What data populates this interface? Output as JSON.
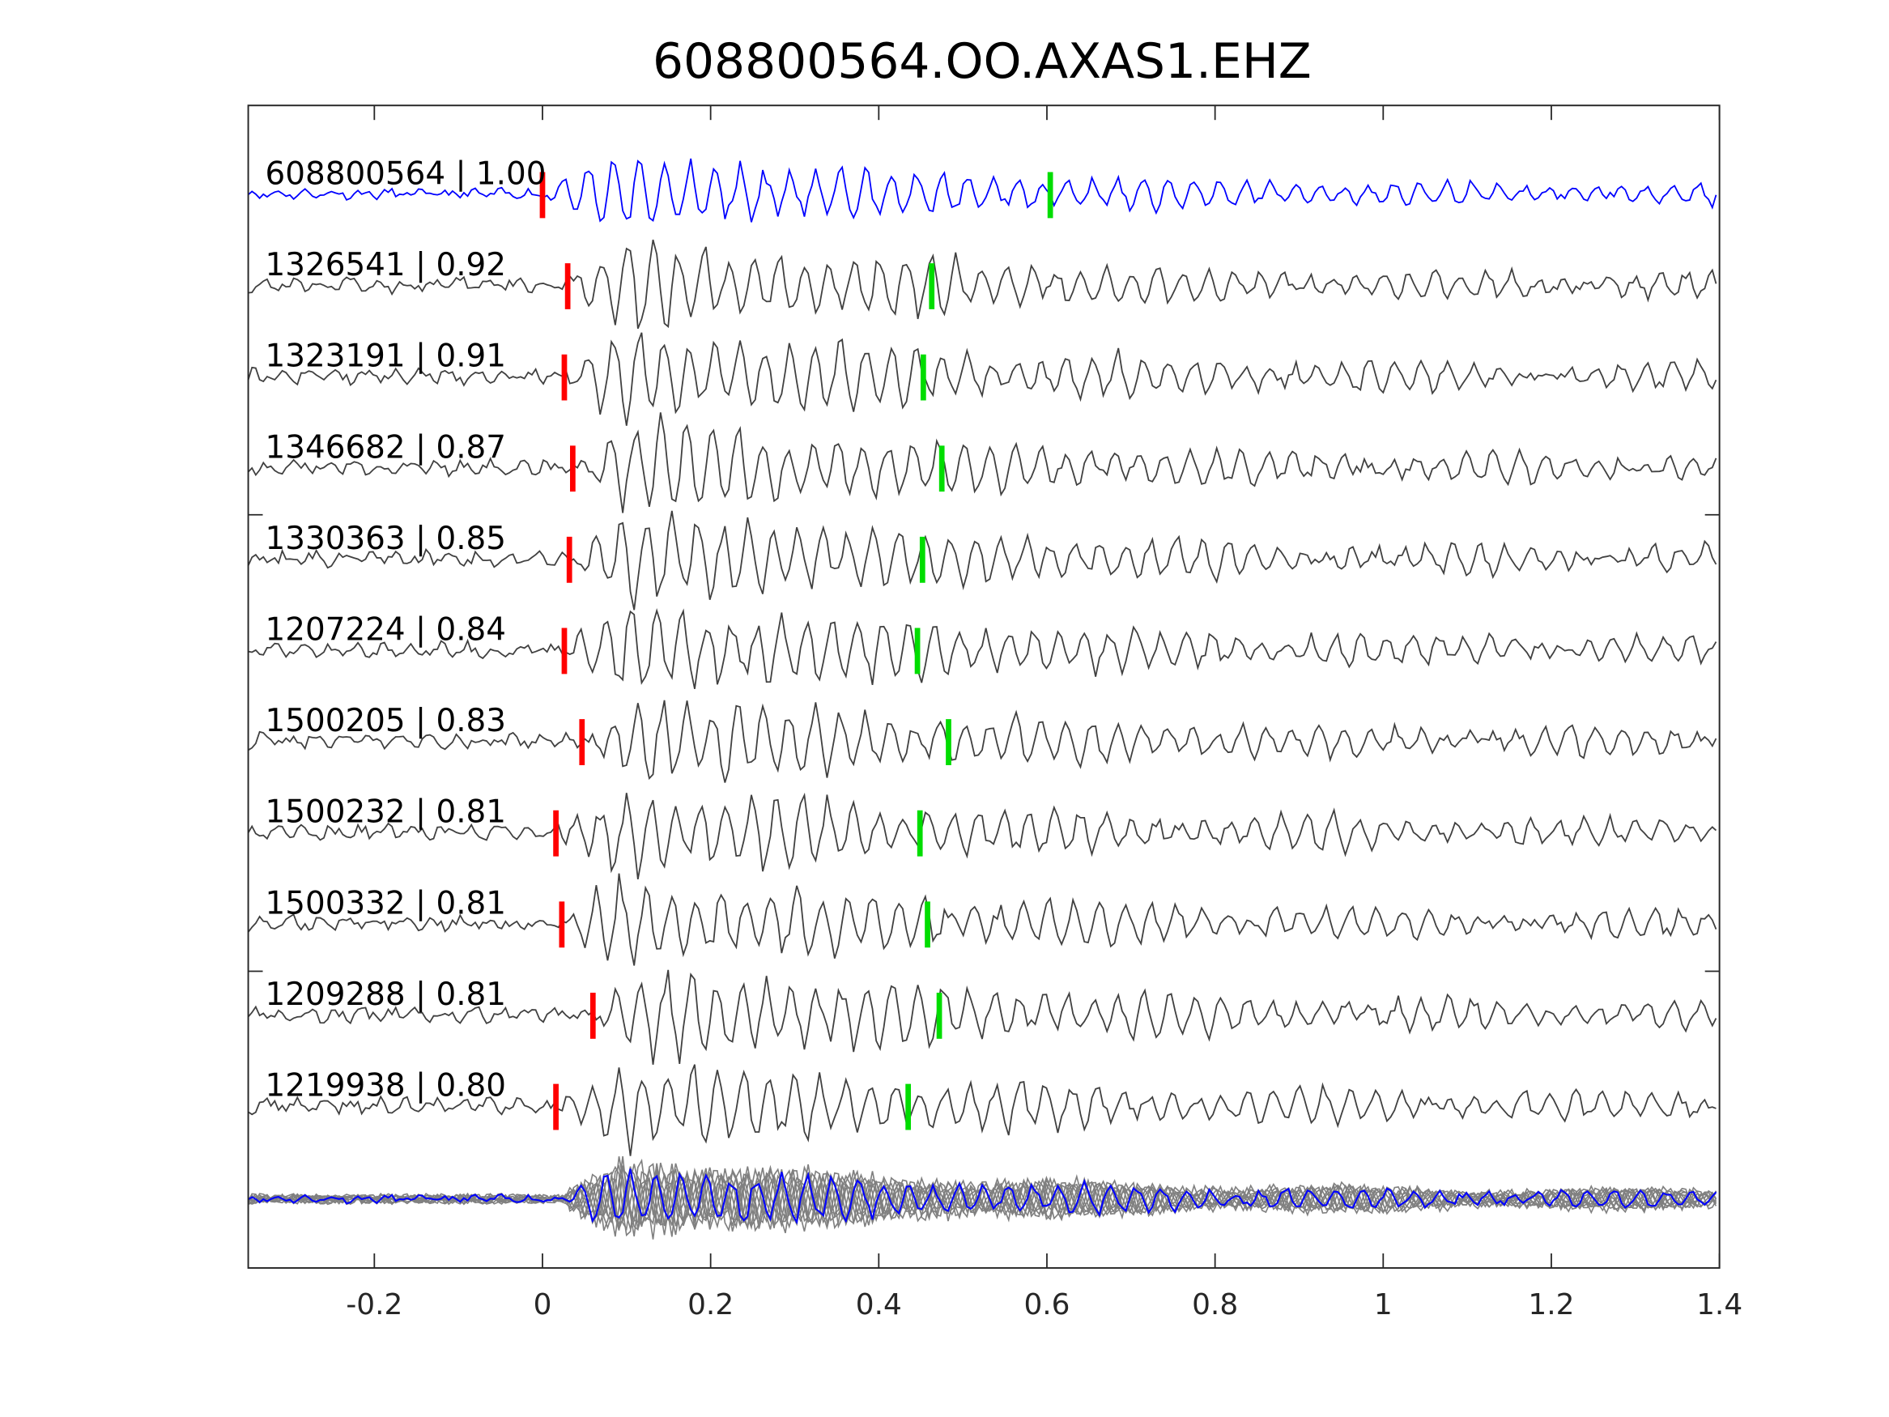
{
  "chart_data": {
    "type": "line",
    "title": "608800564.OO.AXAS1.EHZ",
    "xlabel": "",
    "ylabel": "",
    "xlim": [
      -0.35,
      1.4
    ],
    "xticks": [
      -0.2,
      0,
      0.2,
      0.4,
      0.6,
      0.8,
      1,
      1.2,
      1.4
    ],
    "xtick_labels": [
      "-0.2",
      "0",
      "0.2",
      "0.4",
      "0.6",
      "0.8",
      "1",
      "1.2",
      "1.4"
    ],
    "grid": false,
    "colors": {
      "template": "#0000ff",
      "match": "#404040",
      "stack": "#808080",
      "p_pick": "#ff0000",
      "s_pick": "#00dd00",
      "axis": "#262626"
    },
    "traces": [
      {
        "id": "608800564",
        "cc": "1.00",
        "label": "608800564 | 1.00",
        "p_pick": 0.0,
        "s_pick": 0.604,
        "template": true
      },
      {
        "id": "1326541",
        "cc": "0.92",
        "label": "1326541 | 0.92",
        "p_pick": 0.03,
        "s_pick": 0.463
      },
      {
        "id": "1323191",
        "cc": "0.91",
        "label": "1323191 | 0.91",
        "p_pick": 0.026,
        "s_pick": 0.453
      },
      {
        "id": "1346682",
        "cc": "0.87",
        "label": "1346682 | 0.87",
        "p_pick": 0.036,
        "s_pick": 0.475
      },
      {
        "id": "1330363",
        "cc": "0.85",
        "label": "1330363 | 0.85",
        "p_pick": 0.032,
        "s_pick": 0.452
      },
      {
        "id": "1207224",
        "cc": "0.84",
        "label": "1207224 | 0.84",
        "p_pick": 0.026,
        "s_pick": 0.446
      },
      {
        "id": "1500205",
        "cc": "0.83",
        "label": "1500205 | 0.83",
        "p_pick": 0.047,
        "s_pick": 0.483
      },
      {
        "id": "1500232",
        "cc": "0.81",
        "label": "1500232 | 0.81",
        "p_pick": 0.016,
        "s_pick": 0.449
      },
      {
        "id": "1500332",
        "cc": "0.81",
        "label": "1500332 | 0.81",
        "p_pick": 0.023,
        "s_pick": 0.458
      },
      {
        "id": "1209288",
        "cc": "0.81",
        "label": "1209288 | 0.81",
        "p_pick": 0.06,
        "s_pick": 0.472
      },
      {
        "id": "1219938",
        "cc": "0.80",
        "label": "1219938 | 0.80",
        "p_pick": 0.016,
        "s_pick": 0.435
      }
    ]
  }
}
